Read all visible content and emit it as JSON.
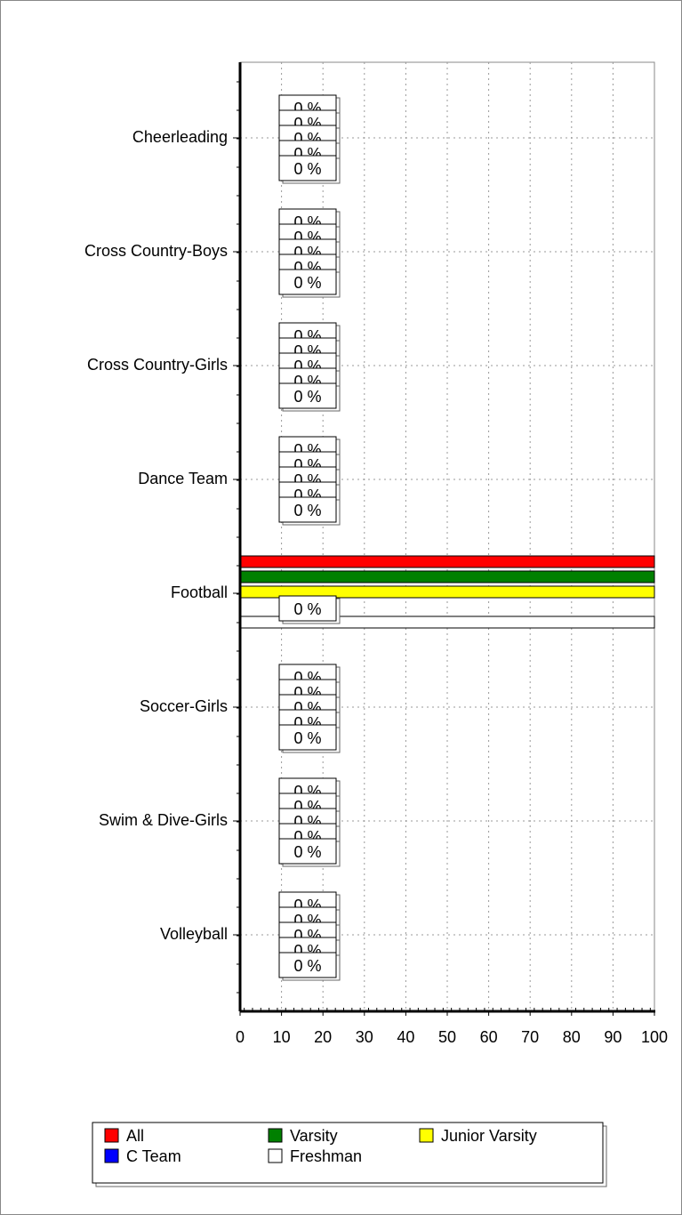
{
  "chart_data": {
    "type": "hbar",
    "categories": [
      "Cheerleading",
      "Cross Country-Boys",
      "Cross Country-Girls",
      "Dance Team",
      "Football",
      "Soccer-Girls",
      "Swim & Dive-Girls",
      "Volleyball"
    ],
    "series": [
      {
        "name": "All",
        "color": "#ff0000",
        "values": [
          0,
          0,
          0,
          0,
          100,
          0,
          0,
          0
        ],
        "value_labels": [
          "0 %",
          "0 %",
          "0 %",
          "0 %",
          null,
          "0 %",
          "0 %",
          "0 %"
        ]
      },
      {
        "name": "Varsity",
        "color": "#008000",
        "values": [
          0,
          0,
          0,
          0,
          100,
          0,
          0,
          0
        ],
        "value_labels": [
          "0 %",
          "0 %",
          "0 %",
          "0 %",
          null,
          "0 %",
          "0 %",
          "0 %"
        ]
      },
      {
        "name": "Junior Varsity",
        "color": "#ffff00",
        "values": [
          0,
          0,
          0,
          0,
          100,
          0,
          0,
          0
        ],
        "value_labels": [
          "0 %",
          "0 %",
          "0 %",
          "0 %",
          null,
          "0 %",
          "0 %",
          "0 %"
        ]
      },
      {
        "name": "C Team",
        "color": "#0000ff",
        "values": [
          0,
          0,
          0,
          0,
          0,
          0,
          0,
          0
        ],
        "value_labels": [
          "0 %",
          "0 %",
          "0 %",
          "0 %",
          "0 %",
          "0 %",
          "0 %",
          "0 %"
        ]
      },
      {
        "name": "Freshman",
        "color": "#ffffff",
        "values": [
          0,
          0,
          0,
          0,
          100,
          0,
          0,
          0
        ],
        "value_labels": [
          "0 %",
          "0 %",
          "0 %",
          "0 %",
          null,
          "0 %",
          "0 %",
          "0 %"
        ]
      }
    ],
    "xlim": [
      0,
      100
    ],
    "xticks": [
      0,
      10,
      20,
      30,
      40,
      50,
      60,
      70,
      80,
      90,
      100
    ],
    "grid": true,
    "legend": "bottom"
  }
}
